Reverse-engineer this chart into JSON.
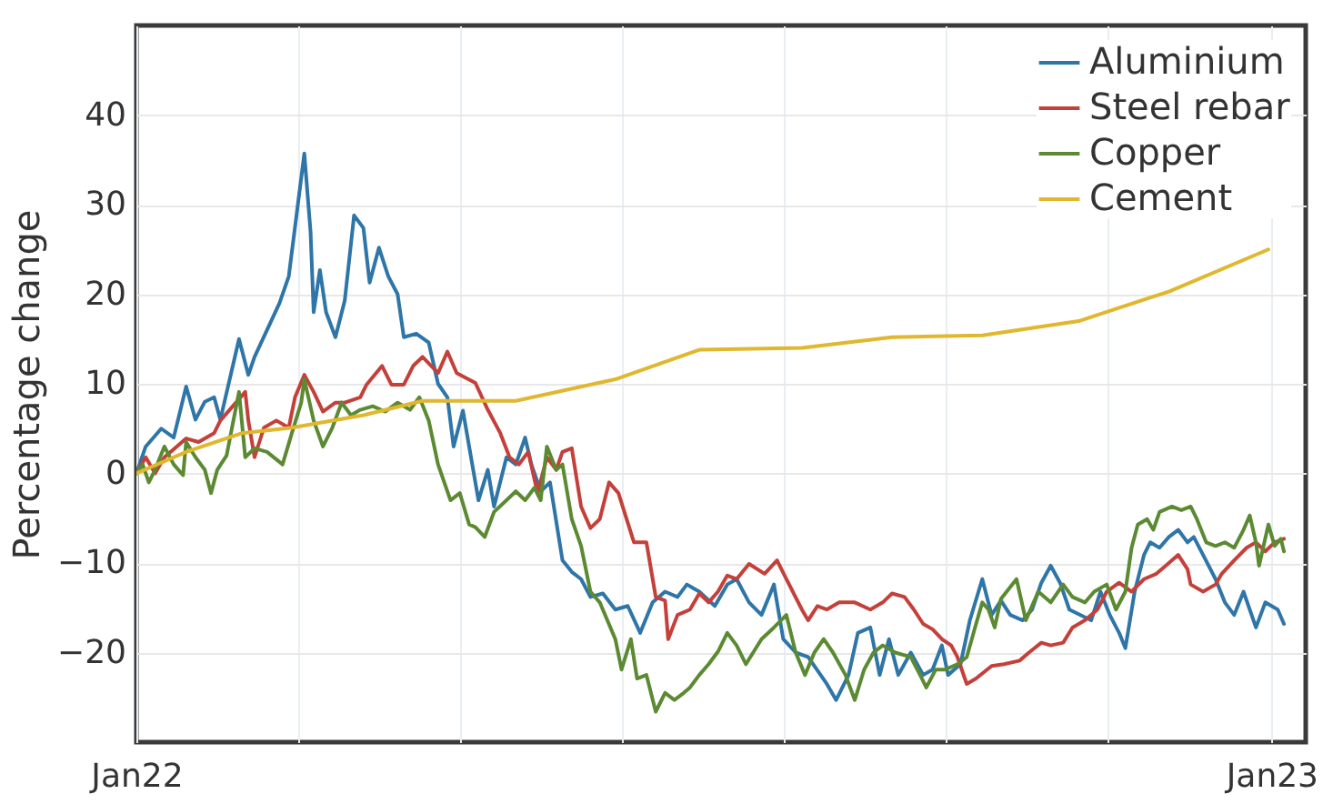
{
  "chart_data": {
    "type": "line",
    "ylabel": "Percentage change",
    "legend": "top right",
    "grid": true,
    "xlim": [
      "2022-01-01",
      "2023-01-12"
    ],
    "xticks": [
      {
        "value": "2022-01-01",
        "label": "Jan22"
      },
      {
        "value": "2022-02-22",
        "label": null
      },
      {
        "value": "2022-04-15",
        "label": null
      },
      {
        "value": "2022-06-06",
        "label": null
      },
      {
        "value": "2022-07-28",
        "label": null
      },
      {
        "value": "2022-09-18",
        "label": null
      },
      {
        "value": "2022-11-09",
        "label": null
      },
      {
        "value": "2023-01-01",
        "label": "Jan23"
      }
    ],
    "ylim": [
      -30,
      50
    ],
    "yticks": [
      -20,
      -10,
      0,
      10,
      20,
      30,
      40
    ],
    "series": [
      {
        "name": "Aluminium",
        "color": "#2e75a8",
        "x": [
          "2022-01-01",
          "2022-01-04",
          "2022-01-09",
          "2022-01-13",
          "2022-01-17",
          "2022-01-20",
          "2022-01-23",
          "2022-01-26",
          "2022-01-28",
          "2022-02-03",
          "2022-02-06",
          "2022-02-08",
          "2022-02-12",
          "2022-02-16",
          "2022-02-19",
          "2022-02-24",
          "2022-02-26",
          "2022-02-27",
          "2022-03-01",
          "2022-03-03",
          "2022-03-06",
          "2022-03-09",
          "2022-03-12",
          "2022-03-15",
          "2022-03-17",
          "2022-03-20",
          "2022-03-23",
          "2022-03-26",
          "2022-03-28",
          "2022-04-01",
          "2022-04-05",
          "2022-04-08",
          "2022-04-11",
          "2022-04-13",
          "2022-04-16",
          "2022-04-21",
          "2022-04-24",
          "2022-04-26",
          "2022-04-30",
          "2022-05-03",
          "2022-05-06",
          "2022-05-08",
          "2022-05-11",
          "2022-05-14",
          "2022-05-18",
          "2022-05-21",
          "2022-05-24",
          "2022-05-27",
          "2022-05-31",
          "2022-06-04",
          "2022-06-08",
          "2022-06-12",
          "2022-06-16",
          "2022-06-20",
          "2022-06-24",
          "2022-06-27",
          "2022-07-01",
          "2022-07-06",
          "2022-07-10",
          "2022-07-13",
          "2022-07-17",
          "2022-07-21",
          "2022-07-25",
          "2022-07-28",
          "2022-08-01",
          "2022-08-05",
          "2022-08-08",
          "2022-08-11",
          "2022-08-14",
          "2022-08-18",
          "2022-08-21",
          "2022-08-25",
          "2022-08-28",
          "2022-08-31",
          "2022-09-03",
          "2022-09-07",
          "2022-09-11",
          "2022-09-14",
          "2022-09-17",
          "2022-09-19",
          "2022-09-23",
          "2022-09-26",
          "2022-09-30",
          "2022-10-03",
          "2022-10-06",
          "2022-10-09",
          "2022-10-13",
          "2022-10-16",
          "2022-10-19",
          "2022-10-22",
          "2022-10-25",
          "2022-10-28",
          "2022-11-04",
          "2022-11-07",
          "2022-11-10",
          "2022-11-13",
          "2022-11-15",
          "2022-11-18",
          "2022-11-21",
          "2022-11-23",
          "2022-11-26",
          "2022-11-29",
          "2022-12-02",
          "2022-12-05",
          "2022-12-07",
          "2022-12-10",
          "2022-12-14",
          "2022-12-17",
          "2022-12-20",
          "2022-12-23",
          "2022-12-27",
          "2022-12-30",
          "2023-01-03",
          "2023-01-05"
        ],
        "values": [
          0,
          3,
          5,
          4,
          9.7,
          6,
          8,
          8.5,
          6,
          15,
          11,
          13,
          16,
          19,
          22,
          35.7,
          27,
          18,
          22.7,
          18,
          15.2,
          19.3,
          28.8,
          27.4,
          21.3,
          25.2,
          22,
          20,
          15.2,
          15.6,
          14.6,
          10,
          8.5,
          3,
          7,
          -3,
          0.4,
          -3.7,
          1.8,
          1,
          4,
          1,
          -2,
          -1,
          -9.7,
          -11,
          -11.8,
          -13.8,
          -13.4,
          -15.2,
          -14.8,
          -17.8,
          -14.4,
          -13.2,
          -13.8,
          -12.4,
          -13.2,
          -14.8,
          -12.4,
          -11.8,
          -14.4,
          -15.8,
          -12.4,
          -18.5,
          -20,
          -20.5,
          -22,
          -23.5,
          -25.3,
          -22.5,
          -17.8,
          -17.2,
          -22.5,
          -18.5,
          -22.5,
          -20,
          -22.5,
          -21.9,
          -19.2,
          -22.5,
          -21.3,
          -16.4,
          -11.8,
          -15.8,
          -14.2,
          -15.8,
          -16.4,
          -15.2,
          -12.2,
          -10.3,
          -12.2,
          -15.2,
          -16.4,
          -13.2,
          -15.8,
          -17.8,
          -19.5,
          -13.2,
          -9.1,
          -7.7,
          -8.3,
          -7.1,
          -6.3,
          -7.7,
          -7.1,
          -9.1,
          -11.8,
          -14.4,
          -15.8,
          -13.2,
          -17.2,
          -14.4,
          -15.2,
          -16.8
        ]
      },
      {
        "name": "Steel rebar",
        "color": "#c4403a",
        "x": [
          "2022-01-01",
          "2022-01-04",
          "2022-01-07",
          "2022-01-10",
          "2022-01-14",
          "2022-01-17",
          "2022-01-21",
          "2022-01-26",
          "2022-01-28",
          "2022-02-01",
          "2022-02-05",
          "2022-02-06",
          "2022-02-08",
          "2022-02-11",
          "2022-02-15",
          "2022-02-19",
          "2022-02-21",
          "2022-02-24",
          "2022-02-27",
          "2022-03-02",
          "2022-03-06",
          "2022-03-09",
          "2022-03-14",
          "2022-03-16",
          "2022-03-21",
          "2022-03-24",
          "2022-03-28",
          "2022-03-31",
          "2022-04-03",
          "2022-04-08",
          "2022-04-11",
          "2022-04-14",
          "2022-04-20",
          "2022-04-24",
          "2022-04-28",
          "2022-05-01",
          "2022-05-04",
          "2022-05-07",
          "2022-05-10",
          "2022-05-13",
          "2022-05-16",
          "2022-05-18",
          "2022-05-21",
          "2022-05-24",
          "2022-05-27",
          "2022-05-30",
          "2022-06-02",
          "2022-06-05",
          "2022-06-10",
          "2022-06-14",
          "2022-06-17",
          "2022-06-20",
          "2022-06-21",
          "2022-06-24",
          "2022-06-28",
          "2022-07-01",
          "2022-07-04",
          "2022-07-07",
          "2022-07-10",
          "2022-07-13",
          "2022-07-17",
          "2022-07-22",
          "2022-07-26",
          "2022-07-29",
          "2022-08-03",
          "2022-08-05",
          "2022-08-08",
          "2022-08-11",
          "2022-08-15",
          "2022-08-20",
          "2022-08-25",
          "2022-08-29",
          "2022-09-01",
          "2022-09-05",
          "2022-09-08",
          "2022-09-11",
          "2022-09-14",
          "2022-09-17",
          "2022-09-20",
          "2022-09-22",
          "2022-09-25",
          "2022-09-28",
          "2022-10-03",
          "2022-10-07",
          "2022-10-12",
          "2022-10-15",
          "2022-10-19",
          "2022-10-22",
          "2022-10-26",
          "2022-10-29",
          "2022-11-02",
          "2022-11-06",
          "2022-11-09",
          "2022-11-13",
          "2022-11-17",
          "2022-11-21",
          "2022-11-25",
          "2022-11-28",
          "2022-11-30",
          "2022-12-02",
          "2022-12-05",
          "2022-12-06",
          "2022-12-10",
          "2022-12-14",
          "2022-12-16",
          "2022-12-20",
          "2022-12-24",
          "2022-12-27",
          "2022-12-30",
          "2023-01-02",
          "2023-01-05"
        ],
        "values": [
          0,
          1.8,
          0,
          1.8,
          3,
          3.9,
          3.5,
          4.5,
          5.9,
          7.5,
          9.1,
          5.9,
          1.8,
          5.1,
          5.9,
          5.1,
          8.5,
          11,
          9.1,
          6.9,
          7.9,
          7.9,
          8.5,
          9.9,
          12,
          9.9,
          9.9,
          12,
          13,
          11.2,
          13.6,
          11.2,
          10.1,
          7.1,
          4.5,
          1.8,
          1,
          2.4,
          -2.2,
          1.8,
          0.4,
          2.4,
          2.8,
          -3.7,
          -6.1,
          -5.1,
          -1,
          -2.2,
          -7.7,
          -7.7,
          -13.8,
          -14.2,
          -18.5,
          -15.8,
          -15.2,
          -13.4,
          -14.4,
          -13.2,
          -11.4,
          -11.8,
          -10.1,
          -11.2,
          -9.7,
          -11.8,
          -15.2,
          -16.4,
          -14.8,
          -15.2,
          -14.4,
          -14.4,
          -15.2,
          -14.4,
          -13.4,
          -13.8,
          -15.2,
          -16.8,
          -17.4,
          -18.5,
          -19.2,
          -20.5,
          -23.5,
          -22.9,
          -21.5,
          -21.3,
          -20.9,
          -20,
          -18.9,
          -19.2,
          -18.9,
          -17.2,
          -16.4,
          -15.2,
          -13.2,
          -12.2,
          -13.2,
          -11.8,
          -11.2,
          -10.3,
          -9.7,
          -9.1,
          -10.7,
          -12.4,
          -13.2,
          -12.4,
          -11.2,
          -9.7,
          -8.3,
          -7.7,
          -8.7,
          -7.7,
          -7.3
        ]
      },
      {
        "name": "Copper",
        "color": "#5b8a32",
        "x": [
          "2022-01-01",
          "2022-01-03",
          "2022-01-05",
          "2022-01-07",
          "2022-01-10",
          "2022-01-13",
          "2022-01-16",
          "2022-01-17",
          "2022-01-20",
          "2022-01-23",
          "2022-01-25",
          "2022-01-27",
          "2022-01-30",
          "2022-02-03",
          "2022-02-05",
          "2022-02-08",
          "2022-02-12",
          "2022-02-17",
          "2022-02-20",
          "2022-02-23",
          "2022-02-24",
          "2022-02-27",
          "2022-03-02",
          "2022-03-05",
          "2022-03-08",
          "2022-03-11",
          "2022-03-14",
          "2022-03-18",
          "2022-03-22",
          "2022-03-26",
          "2022-03-30",
          "2022-04-02",
          "2022-04-05",
          "2022-04-08",
          "2022-04-12",
          "2022-04-15",
          "2022-04-18",
          "2022-04-20",
          "2022-04-23",
          "2022-04-26",
          "2022-04-30",
          "2022-05-03",
          "2022-05-06",
          "2022-05-09",
          "2022-05-11",
          "2022-05-13",
          "2022-05-16",
          "2022-05-18",
          "2022-05-21",
          "2022-05-24",
          "2022-05-27",
          "2022-05-30",
          "2022-06-04",
          "2022-06-06",
          "2022-06-09",
          "2022-06-11",
          "2022-06-14",
          "2022-06-17",
          "2022-06-20",
          "2022-06-23",
          "2022-06-26",
          "2022-06-28",
          "2022-07-01",
          "2022-07-04",
          "2022-07-07",
          "2022-07-10",
          "2022-07-13",
          "2022-07-16",
          "2022-07-21",
          "2022-07-25",
          "2022-07-29",
          "2022-08-01",
          "2022-08-04",
          "2022-08-07",
          "2022-08-10",
          "2022-08-13",
          "2022-08-17",
          "2022-08-20",
          "2022-08-23",
          "2022-08-26",
          "2022-08-29",
          "2022-09-02",
          "2022-09-07",
          "2022-09-10",
          "2022-09-12",
          "2022-09-15",
          "2022-09-18",
          "2022-09-22",
          "2022-09-25",
          "2022-09-28",
          "2022-09-30",
          "2022-10-02",
          "2022-10-04",
          "2022-10-06",
          "2022-10-11",
          "2022-10-14",
          "2022-10-18",
          "2022-10-22",
          "2022-10-26",
          "2022-10-29",
          "2022-11-02",
          "2022-11-05",
          "2022-11-09",
          "2022-11-12",
          "2022-11-15",
          "2022-11-17",
          "2022-11-19",
          "2022-11-22",
          "2022-11-24",
          "2022-11-26",
          "2022-11-30",
          "2022-12-03",
          "2022-12-06",
          "2022-12-08",
          "2022-12-11",
          "2022-12-14",
          "2022-12-17",
          "2022-12-20",
          "2022-12-23",
          "2022-12-25",
          "2022-12-27",
          "2022-12-28",
          "2022-12-31",
          "2023-01-02",
          "2023-01-04",
          "2023-01-05"
        ],
        "values": [
          0,
          1,
          -1,
          0.4,
          3,
          1,
          -0.2,
          3.5,
          1.8,
          0.4,
          -2.2,
          0.4,
          2,
          9.1,
          1.8,
          2.8,
          2.4,
          1,
          4.5,
          7.9,
          10.5,
          5.9,
          3,
          5.1,
          7.9,
          6.5,
          7.1,
          7.5,
          6.9,
          7.9,
          7.1,
          8.5,
          5.9,
          1,
          -3,
          -2.2,
          -5.7,
          -6,
          -7.1,
          -4.3,
          -3,
          -2,
          -3,
          -1.6,
          -3,
          3,
          0.4,
          1,
          -5.1,
          -8.1,
          -13.2,
          -14.4,
          -18.5,
          -21.9,
          -18.5,
          -22.9,
          -22.5,
          -26.6,
          -24.5,
          -25.3,
          -24.5,
          -23.9,
          -22.5,
          -21.3,
          -19.9,
          -17.8,
          -19.2,
          -21.3,
          -18.5,
          -17.2,
          -15.8,
          -20,
          -22.5,
          -20,
          -18.5,
          -20,
          -22.5,
          -25.3,
          -21.9,
          -20,
          -19.2,
          -20,
          -20.5,
          -22.5,
          -23.9,
          -21.9,
          -21.9,
          -21.3,
          -20.5,
          -16.8,
          -14.4,
          -15.2,
          -17.2,
          -14,
          -11.8,
          -16.4,
          -13.2,
          -14.4,
          -12.4,
          -13.8,
          -14.4,
          -13.2,
          -12.4,
          -15.2,
          -13.2,
          -8.3,
          -5.7,
          -5.1,
          -6.3,
          -4.3,
          -3.7,
          -4.1,
          -3.7,
          -5.1,
          -7.7,
          -8.1,
          -7.7,
          -8.3,
          -6.3,
          -4.7,
          -7.7,
          -10.3,
          -5.7,
          -8.1,
          -7.3,
          -8.7
        ]
      },
      {
        "name": "Cement",
        "color": "#e0b72e",
        "x": [
          "2022-01-01",
          "2022-01-17",
          "2022-02-04",
          "2022-02-20",
          "2022-03-15",
          "2022-04-03",
          "2022-05-03",
          "2022-06-04",
          "2022-07-01",
          "2022-08-03",
          "2022-09-01",
          "2022-09-30",
          "2022-10-31",
          "2022-11-29",
          "2022-12-31"
        ],
        "values": [
          0,
          2.4,
          4.5,
          5.1,
          6.5,
          8.1,
          8.1,
          10.5,
          13.8,
          14.0,
          15.2,
          15.4,
          17.0,
          20.3,
          25.0
        ]
      }
    ]
  }
}
